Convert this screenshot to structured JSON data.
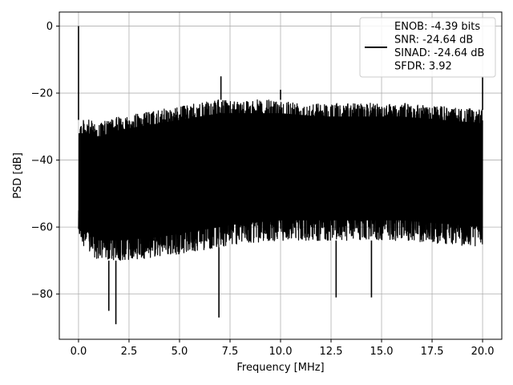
{
  "chart_data": {
    "type": "line",
    "title": "",
    "xlabel": "Frequency [MHz]",
    "ylabel": "PSD [dB]",
    "xlim": [
      -0.95,
      20.95
    ],
    "ylim": [
      -93.5,
      4.2
    ],
    "xticks": [
      0.0,
      2.5,
      5.0,
      7.5,
      10.0,
      12.5,
      15.0,
      17.5,
      20.0
    ],
    "xtick_labels": [
      "0.0",
      "2.5",
      "5.0",
      "7.5",
      "10.0",
      "12.5",
      "15.0",
      "17.5",
      "20.0"
    ],
    "yticks": [
      0,
      -20,
      -40,
      -60,
      -80
    ],
    "ytick_labels": [
      "0",
      "−20",
      "−40",
      "−60",
      "−80"
    ],
    "grid": true,
    "legend_position": "top-right",
    "series": [
      {
        "name": "",
        "color": "#000000",
        "noise_floor_upper": {
          "x": [
            0.0,
            0.5,
            1.0,
            2.0,
            3.0,
            4.0,
            5.0,
            6.0,
            7.0,
            8.0,
            10.0,
            12.0,
            14.0,
            16.0,
            18.0,
            20.0
          ],
          "y": [
            -28,
            -28,
            -29,
            -27,
            -26,
            -25,
            -24,
            -23,
            -22,
            -22,
            -22,
            -23,
            -23,
            -23,
            -24,
            -25
          ]
        },
        "noise_floor_lower": {
          "x": [
            0.0,
            0.5,
            1.0,
            2.0,
            4.0,
            6.0,
            8.0,
            10.0,
            12.0,
            14.0,
            16.0,
            18.0,
            20.0
          ],
          "y": [
            -63,
            -68,
            -70,
            -70,
            -69,
            -67,
            -65,
            -64,
            -64,
            -64,
            -64,
            -65,
            -66
          ]
        },
        "spikes": [
          {
            "x": 0.0,
            "y": 0.0
          },
          {
            "x": 1.5,
            "y": -85
          },
          {
            "x": 1.85,
            "y": -89
          },
          {
            "x": 7.05,
            "y": -15
          },
          {
            "x": 6.95,
            "y": -87
          },
          {
            "x": 10.0,
            "y": -19
          },
          {
            "x": 12.75,
            "y": -81
          },
          {
            "x": 14.5,
            "y": -81
          },
          {
            "x": 20.0,
            "y": -15
          }
        ]
      }
    ],
    "legend": {
      "lines": [
        "ENOB: -4.39 bits",
        "SNR: -24.64 dB",
        "SINAD: -24.64 dB",
        "SFDR: 3.92"
      ]
    }
  }
}
